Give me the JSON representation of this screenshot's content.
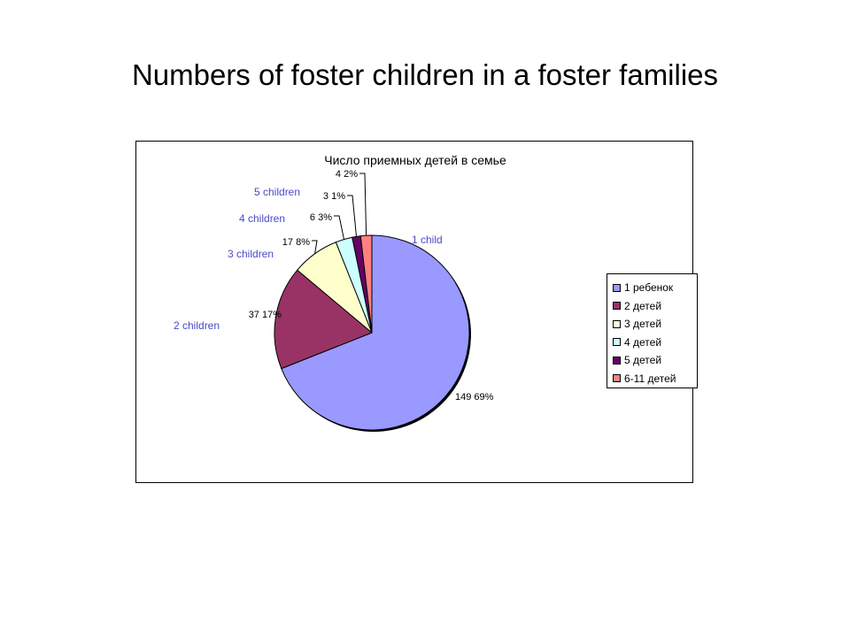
{
  "slide": {
    "title": "Numbers of foster children in a foster families"
  },
  "chart_data": {
    "type": "pie",
    "title": "Число приемных детей в семье",
    "slices": [
      {
        "label": "1 ребенок",
        "value": 149,
        "percent_label": "149 69%",
        "color": "#9999ff",
        "annotation": "1 child"
      },
      {
        "label": "2 детей",
        "value": 37,
        "percent_label": "37 17%",
        "color": "#993366",
        "annotation": "2 children"
      },
      {
        "label": "3 детей",
        "value": 17,
        "percent_label": "17 8%",
        "color": "#ffffcc",
        "annotation": "3 children"
      },
      {
        "label": "4 детей",
        "value": 6,
        "percent_label": "6 3%",
        "color": "#ccffff",
        "annotation": "4 children"
      },
      {
        "label": "5 детей",
        "value": 3,
        "percent_label": "3 1%",
        "color": "#660066",
        "annotation": "5 children"
      },
      {
        "label": "6-11 детей",
        "value": 4,
        "percent_label": "4 2%",
        "color": "#ff8080",
        "annotation": ""
      }
    ],
    "legend_position": "right"
  }
}
